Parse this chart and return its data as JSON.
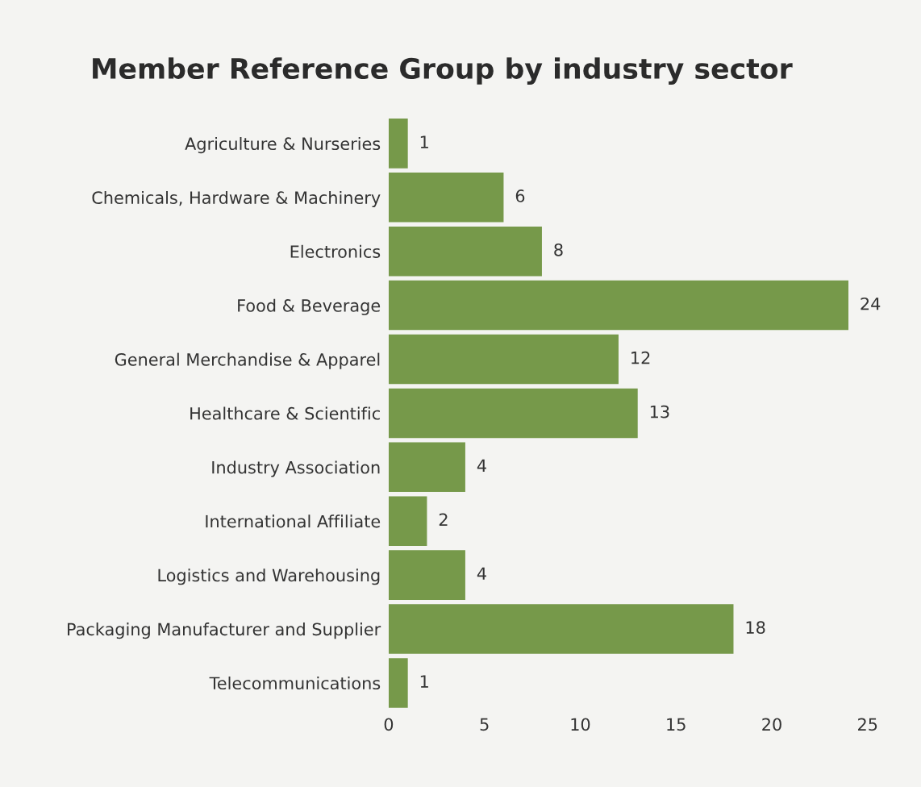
{
  "chart_data": {
    "type": "bar",
    "orientation": "horizontal",
    "title": "Member Reference Group by industry sector",
    "categories": [
      "Agriculture & Nurseries",
      "Chemicals, Hardware & Machinery",
      "Electronics",
      "Food & Beverage",
      "General Merchandise & Apparel",
      "Healthcare & Scientific",
      "Industry Association",
      "International Affiliate",
      "Logistics and Warehousing",
      "Packaging Manufacturer and Supplier",
      "Telecommunications"
    ],
    "values": [
      1,
      6,
      8,
      24,
      12,
      13,
      4,
      2,
      4,
      18,
      1
    ],
    "color": "#76994a",
    "xlim": [
      0,
      25
    ],
    "xticks": [
      0,
      5,
      10,
      15,
      20,
      25
    ],
    "grid": false,
    "data_labels": true
  }
}
